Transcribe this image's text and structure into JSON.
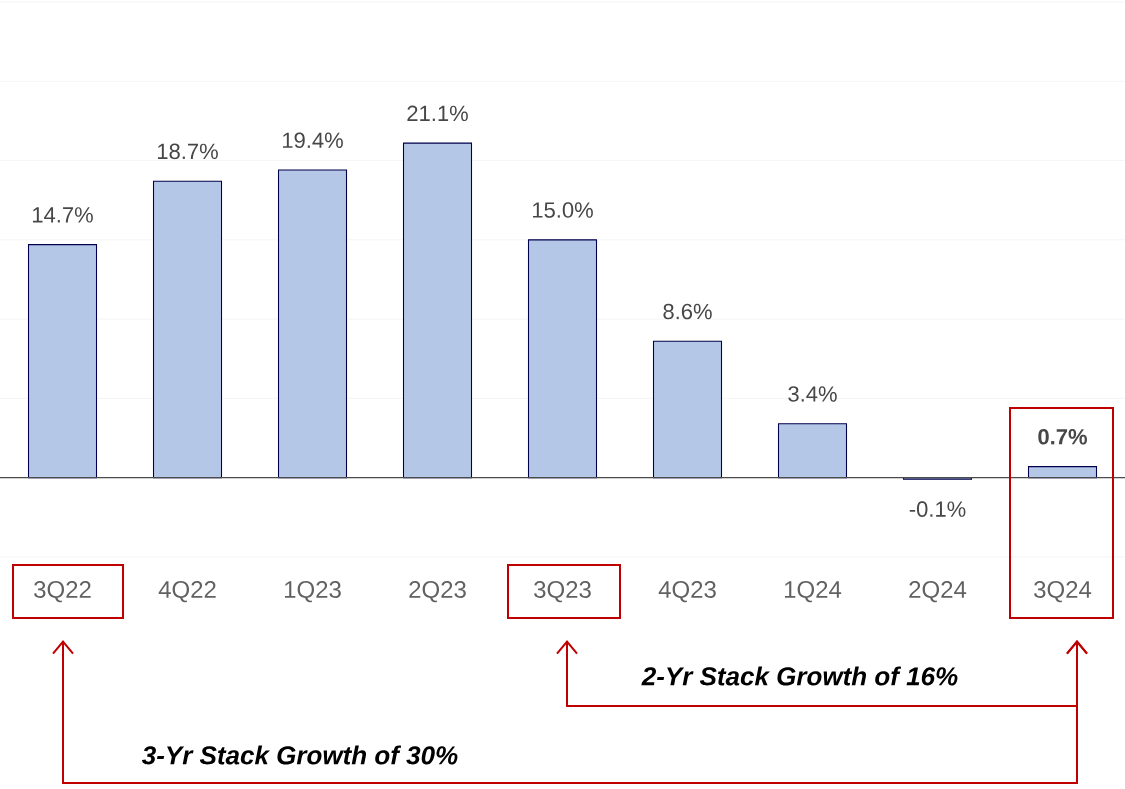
{
  "chart_data": {
    "type": "bar",
    "categories": [
      "3Q22",
      "4Q22",
      "1Q23",
      "2Q23",
      "3Q23",
      "4Q23",
      "1Q24",
      "2Q24",
      "3Q24"
    ],
    "values": [
      14.7,
      18.7,
      19.4,
      21.1,
      15.0,
      8.6,
      3.4,
      -0.1,
      0.7
    ],
    "value_labels": [
      "14.7%",
      "18.7%",
      "19.4%",
      "21.1%",
      "15.0%",
      "8.6%",
      "3.4%",
      "-0.1%",
      "**0.7%**"
    ],
    "color": "#b4c7e7",
    "ylim": [
      -5,
      30
    ],
    "yticks": [
      -5,
      0,
      5,
      10,
      15,
      20,
      25,
      30
    ],
    "grid": "y",
    "tick_labels": "x",
    "annotations": [
      "2-Yr Stack Growth of 16%",
      "3-Yr Stack Growth of 30%"
    ]
  }
}
